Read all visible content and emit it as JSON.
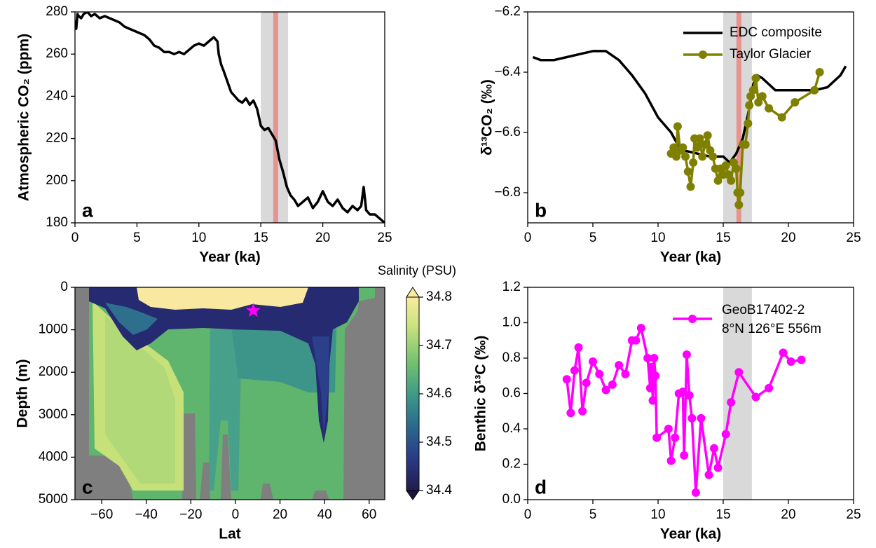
{
  "chart_data": [
    {
      "type": "line",
      "panel_label": "a",
      "xlabel": "Year (ka)",
      "ylabel": "Atmospheric CO₂ (ppm)",
      "xlim": [
        0,
        25
      ],
      "ylim": [
        180,
        280
      ],
      "xticks": [
        0,
        5,
        10,
        15,
        20,
        25
      ],
      "yticks": [
        180,
        200,
        220,
        240,
        260,
        280
      ],
      "shade": [
        15,
        17.2
      ],
      "shade_color": "#d9d9d9",
      "highlight": 16.2,
      "highlight_color": "#e8938f",
      "series": [
        {
          "color": "#000000",
          "x": [
            0,
            0.1,
            0.2,
            0.3,
            0.5,
            0.7,
            1,
            1.3,
            1.6,
            2,
            2.4,
            2.8,
            3.2,
            3.6,
            4,
            4.4,
            4.8,
            5.2,
            5.6,
            6,
            6.4,
            6.8,
            7.2,
            7.6,
            8,
            8.4,
            8.8,
            9.2,
            9.6,
            10,
            10.4,
            10.8,
            11.2,
            11.5,
            11.6,
            11.8,
            12,
            12.3,
            12.6,
            12.9,
            13.2,
            13.5,
            13.8,
            14.1,
            14.4,
            14.7,
            15,
            15.3,
            15.6,
            15.9,
            16.2,
            16.5,
            16.8,
            17.1,
            17.4,
            17.7,
            18,
            18.4,
            18.8,
            19.2,
            19.6,
            20,
            20.4,
            20.8,
            21.2,
            21.6,
            22,
            22.4,
            22.8,
            23.1,
            23.3,
            23.5,
            23.8,
            24.2,
            24.6,
            25
          ],
          "values": [
            276,
            272,
            279,
            278,
            277,
            279,
            280,
            278,
            279,
            277,
            278,
            277,
            276,
            275,
            273,
            272,
            271,
            270,
            269,
            267,
            264,
            263,
            261,
            261,
            260,
            261,
            260,
            262,
            264,
            265,
            264,
            266,
            268,
            266,
            260,
            255,
            252,
            247,
            242,
            240,
            238,
            237,
            239,
            236,
            238,
            234,
            226,
            224,
            225,
            222,
            219,
            210,
            204,
            197,
            193,
            191,
            188,
            190,
            192,
            187,
            190,
            195,
            190,
            188,
            191,
            187,
            185,
            188,
            186,
            188,
            197,
            186,
            184,
            184,
            182,
            180
          ]
        }
      ]
    },
    {
      "type": "line",
      "panel_label": "b",
      "xlabel": "Year (ka)",
      "ylabel": "δ¹³CO₂ (‰)",
      "xlim": [
        0,
        25
      ],
      "ylim": [
        -6.9,
        -6.2
      ],
      "xticks": [
        0,
        5,
        10,
        15,
        20,
        25
      ],
      "yticks": [
        {
          "value": -6.8,
          "label": "−6.8"
        },
        {
          "value": -6.6,
          "label": "−6.6"
        },
        {
          "value": -6.4,
          "label": "−6.4"
        },
        {
          "value": -6.2,
          "label": "−6.2"
        }
      ],
      "shade": [
        15,
        17.2
      ],
      "shade_color": "#d9d9d9",
      "highlight": 16.2,
      "highlight_color": "#e8938f",
      "legend": "upper right",
      "series": [
        {
          "name": "EDC composite",
          "color": "#000000",
          "x": [
            0.4,
            1,
            2,
            3,
            4,
            5,
            6,
            7,
            8,
            9,
            10,
            11,
            11.5,
            12,
            13,
            14,
            15,
            15.5,
            16,
            16.5,
            17,
            17.3,
            17.6,
            18,
            19,
            20,
            21,
            22,
            23,
            24,
            24.4
          ],
          "values": [
            -6.35,
            -6.36,
            -6.36,
            -6.35,
            -6.34,
            -6.33,
            -6.33,
            -6.36,
            -6.41,
            -6.47,
            -6.55,
            -6.6,
            -6.64,
            -6.66,
            -6.67,
            -6.68,
            -6.68,
            -6.7,
            -6.67,
            -6.62,
            -6.52,
            -6.44,
            -6.41,
            -6.42,
            -6.46,
            -6.46,
            -6.46,
            -6.46,
            -6.45,
            -6.41,
            -6.38
          ]
        },
        {
          "name": "Taylor Glacier",
          "color": "#808000",
          "markers": true,
          "x": [
            11,
            11.2,
            11.4,
            11.5,
            11.7,
            11.9,
            12.1,
            12.3,
            12.5,
            12.7,
            12.8,
            13,
            13.2,
            13.4,
            13.6,
            13.8,
            14,
            14.2,
            14.4,
            14.6,
            14.8,
            15,
            15.2,
            15.4,
            15.6,
            15.8,
            16,
            16.1,
            16.2,
            16.3,
            16.5,
            16.7,
            16.9,
            17,
            17.1,
            17.3,
            17.5,
            17.7,
            18,
            18.5,
            19.5,
            20.5,
            22,
            22.4
          ],
          "values": [
            -6.67,
            -6.65,
            -6.68,
            -6.58,
            -6.66,
            -6.65,
            -6.68,
            -6.73,
            -6.78,
            -6.7,
            -6.62,
            -6.65,
            -6.62,
            -6.68,
            -6.64,
            -6.61,
            -6.66,
            -6.68,
            -6.72,
            -6.76,
            -6.72,
            -6.74,
            -6.71,
            -6.74,
            -6.76,
            -6.7,
            -6.72,
            -6.8,
            -6.84,
            -6.8,
            -6.64,
            -6.64,
            -6.57,
            -6.51,
            -6.48,
            -6.46,
            -6.42,
            -6.5,
            -6.48,
            -6.52,
            -6.55,
            -6.5,
            -6.46,
            -6.4
          ]
        }
      ]
    },
    {
      "type": "contour",
      "panel_label": "c",
      "xlabel": "Lat",
      "ylabel": "Depth (m)",
      "xlim": [
        -72,
        67
      ],
      "ylim": [
        5000,
        0
      ],
      "xticks": [
        {
          "value": -60,
          "label": "−60"
        },
        {
          "value": -40,
          "label": "−40"
        },
        {
          "value": -20,
          "label": "−20"
        },
        0,
        20,
        40,
        60
      ],
      "yticks": [
        0,
        1000,
        2000,
        3000,
        4000,
        5000
      ],
      "marker": {
        "x": 8,
        "y": 550,
        "color": "#ff00ff"
      },
      "colorbar": {
        "label": "Salinity (PSU)",
        "lim": [
          34.4,
          34.8
        ],
        "ticks": [
          34.4,
          34.5,
          34.6,
          34.7,
          34.8
        ]
      }
    },
    {
      "type": "line",
      "panel_label": "d",
      "xlabel": "Year (ka)",
      "ylabel": "Benthic δ¹³C (‰)",
      "xlim": [
        0,
        25
      ],
      "ylim": [
        0,
        1.2
      ],
      "xticks": [
        0,
        5,
        10,
        15,
        20,
        25
      ],
      "yticks": [
        {
          "value": 0,
          "label": "0.0"
        },
        0.2,
        0.4,
        0.6,
        0.8,
        {
          "value": 1,
          "label": "1.0"
        },
        1.2
      ],
      "shade": [
        15,
        17.2
      ],
      "shade_color": "#d9d9d9",
      "legend": "upper right",
      "legend_note": "8°N 126°E 556m",
      "series": [
        {
          "name": "GeoB17402-2",
          "color": "#ff00ff",
          "markers": true,
          "x": [
            3,
            3.3,
            3.6,
            3.9,
            4.2,
            4.5,
            5,
            5.5,
            6,
            6.5,
            7,
            7.5,
            8,
            8.3,
            8.7,
            9.2,
            9.4,
            9.5,
            9.6,
            9.7,
            9.8,
            9.9,
            10.8,
            11,
            11.3,
            11.6,
            11.9,
            12,
            12.2,
            12.4,
            12.6,
            12.9,
            13.3,
            13.9,
            14.3,
            14.6,
            15.2,
            15.6,
            16.2,
            17.5,
            18.5,
            19.6,
            20.2,
            21
          ],
          "values": [
            0.68,
            0.49,
            0.73,
            0.86,
            0.5,
            0.66,
            0.78,
            0.71,
            0.62,
            0.65,
            0.76,
            0.71,
            0.9,
            0.9,
            0.97,
            0.8,
            0.63,
            0.75,
            0.56,
            0.8,
            0.7,
            0.35,
            0.4,
            0.22,
            0.35,
            0.6,
            0.61,
            0.25,
            0.82,
            0.59,
            0.46,
            0.04,
            0.46,
            0.14,
            0.29,
            0.18,
            0.37,
            0.55,
            0.72,
            0.58,
            0.63,
            0.83,
            0.78,
            0.79
          ]
        }
      ]
    }
  ]
}
